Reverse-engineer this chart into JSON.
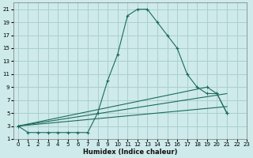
{
  "xlabel": "Humidex (Indice chaleur)",
  "bg_color": "#ceeaea",
  "grid_color": "#aacfcf",
  "line_color": "#1a6b5a",
  "curve": {
    "x": [
      0,
      1,
      2,
      3,
      4,
      5,
      6,
      7,
      8,
      9,
      10,
      11,
      12,
      13,
      14,
      15,
      16,
      17,
      18,
      19,
      20,
      21
    ],
    "y": [
      3,
      2,
      2,
      2,
      2,
      2,
      2,
      2,
      5,
      10,
      14,
      20,
      21,
      21,
      19,
      17,
      15,
      11,
      9,
      8,
      8,
      5
    ]
  },
  "line1": {
    "x": [
      0,
      21
    ],
    "y": [
      3,
      8
    ]
  },
  "line2": {
    "x": [
      0,
      21
    ],
    "y": [
      3,
      6
    ]
  },
  "line3": {
    "x": [
      0,
      19,
      20,
      21
    ],
    "y": [
      3,
      9,
      8,
      5
    ]
  },
  "xlim": [
    -0.5,
    23
  ],
  "ylim": [
    1,
    22
  ],
  "xticks": [
    0,
    1,
    2,
    3,
    4,
    5,
    6,
    7,
    8,
    9,
    10,
    11,
    12,
    13,
    14,
    15,
    16,
    17,
    18,
    19,
    20,
    21,
    22,
    23
  ],
  "yticks": [
    1,
    3,
    5,
    7,
    9,
    11,
    13,
    15,
    17,
    19,
    21
  ],
  "xlabel_fontsize": 6,
  "tick_fontsize": 5
}
